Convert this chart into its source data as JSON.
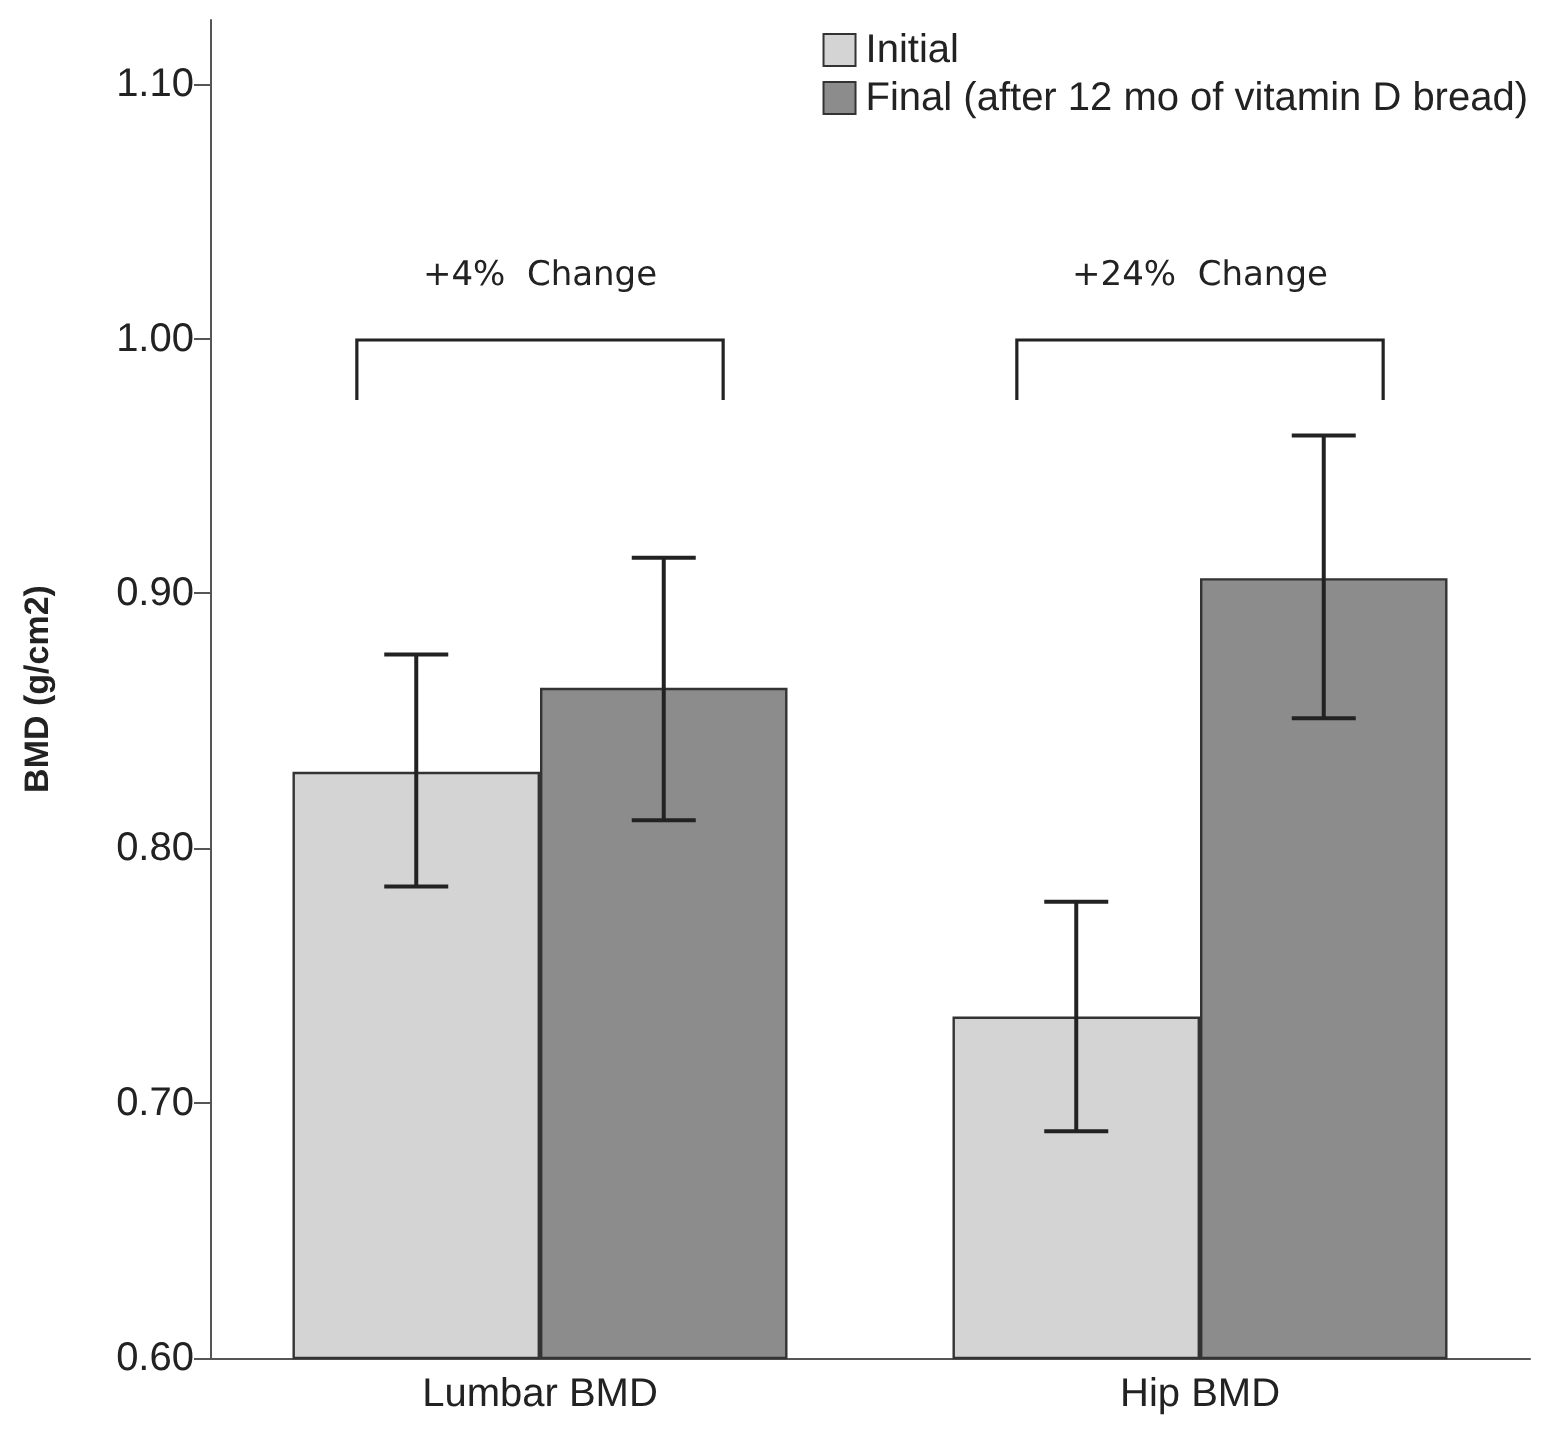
{
  "chart_data": {
    "type": "bar",
    "ylabel": "BMD (g/cm2)",
    "categories": [
      "Lumbar BMD",
      "Hip BMD"
    ],
    "series": [
      {
        "name": "Initial",
        "color": "#d4d4d4",
        "values": [
          0.83,
          0.734
        ],
        "errors": [
          [
            0.785,
            0.876
          ],
          [
            0.689,
            0.779
          ]
        ]
      },
      {
        "name": "Final (after 12 mo of vitamin D bread)",
        "color": "#8c8c8c",
        "values": [
          0.863,
          0.906
        ],
        "errors": [
          [
            0.811,
            0.914
          ],
          [
            0.851,
            0.962
          ]
        ]
      }
    ],
    "ylim": [
      0.6,
      1.125
    ],
    "yticks": [
      {
        "value": 0.6,
        "label": "0.60"
      },
      {
        "value": 0.7,
        "label": "0.70"
      },
      {
        "value": 0.8,
        "label": "0.80"
      },
      {
        "value": 0.9,
        "label": "0.90"
      },
      {
        "value": 1.0,
        "label": "1.00"
      },
      {
        "value": 1.1,
        "label": "1.10"
      }
    ],
    "annotations": [
      "+4%  Change",
      "+24%  Change"
    ],
    "grid": false,
    "legend": "top right"
  }
}
